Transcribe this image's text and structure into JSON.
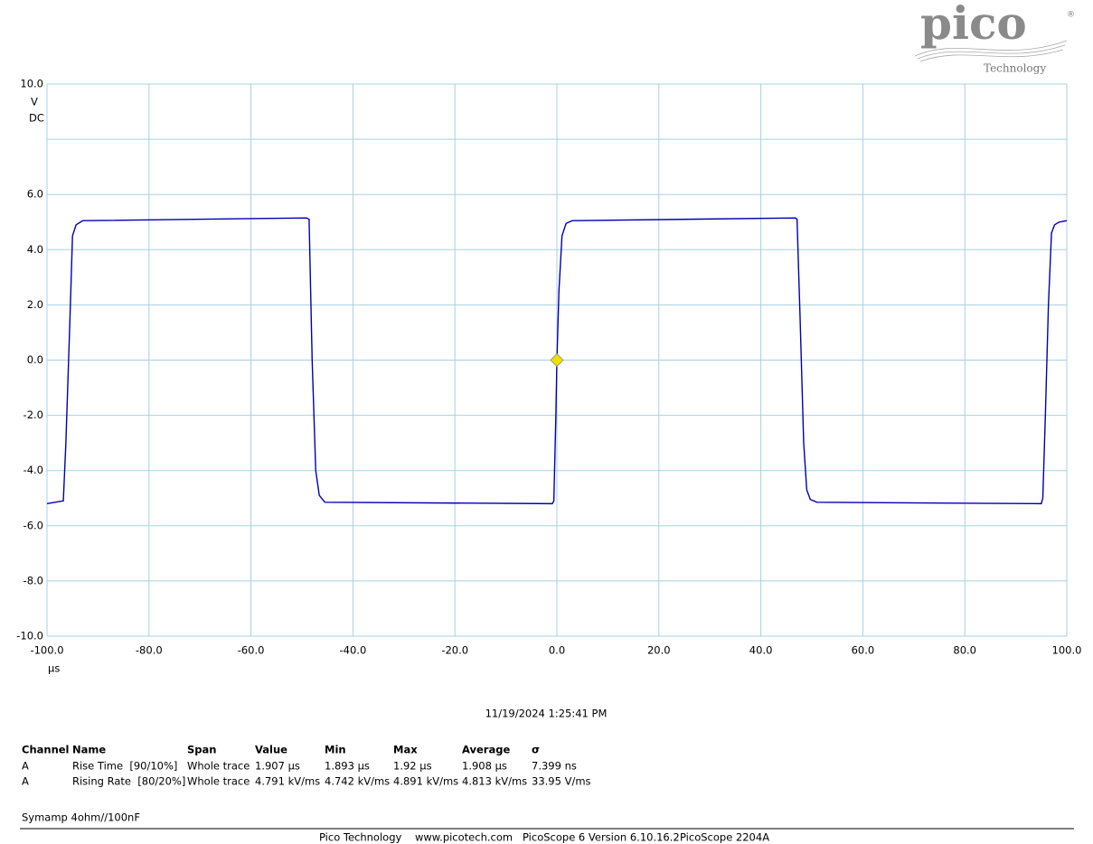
{
  "logo": {
    "name": "pico",
    "registered": "®",
    "sub": "Technology"
  },
  "chart_data": {
    "type": "line",
    "y_unit": "V",
    "y_coupling": "DC",
    "x_unit": "µs",
    "x": [
      -100,
      -96.8,
      -96.3,
      -95.5,
      -95,
      -94.3,
      -93,
      -49.1,
      -48.6,
      -48,
      -47.3,
      -46.6,
      -45.5,
      -0.9,
      -0.6,
      -0.2,
      0,
      0.4,
      1,
      1.8,
      3,
      46.8,
      47.1,
      47.7,
      48.4,
      49,
      49.7,
      51,
      95,
      95.3,
      95.8,
      96.4,
      97,
      97.6,
      98.5,
      100
    ],
    "series": [
      {
        "name": "A",
        "color": "#0000b0",
        "values": [
          -5.2,
          -5.1,
          -3,
          1.5,
          4.5,
          4.9,
          5.05,
          5.15,
          5.1,
          0,
          -4,
          -4.9,
          -5.15,
          -5.2,
          -5.1,
          -2,
          0,
          2.5,
          4.5,
          4.95,
          5.05,
          5.15,
          5.1,
          1.5,
          -3,
          -4.7,
          -5.05,
          -5.15,
          -5.2,
          -5.0,
          -2,
          2,
          4.6,
          4.9,
          5.0,
          5.05
        ]
      }
    ],
    "trigger": {
      "x": 0,
      "y": 0,
      "color": "#f0e000"
    },
    "xlim": [
      -100,
      100
    ],
    "ylim": [
      -10,
      10
    ],
    "grid": true,
    "xticks": [
      {
        "value": -100,
        "label": "-100.0"
      },
      {
        "value": -80,
        "label": "-80.0"
      },
      {
        "value": -60,
        "label": "-60.0"
      },
      {
        "value": -40,
        "label": "-40.0"
      },
      {
        "value": -20,
        "label": "-20.0"
      },
      {
        "value": 0,
        "label": "0.0"
      },
      {
        "value": 20,
        "label": "20.0"
      },
      {
        "value": 40,
        "label": "40.0"
      },
      {
        "value": 60,
        "label": "60.0"
      },
      {
        "value": 80,
        "label": "80.0"
      },
      {
        "value": 100,
        "label": "100.0"
      }
    ],
    "yticks": [
      {
        "value": 10,
        "label": "10.0"
      },
      {
        "value": 8,
        "label": null
      },
      {
        "value": 6,
        "label": "6.0"
      },
      {
        "value": 4,
        "label": "4.0"
      },
      {
        "value": 2,
        "label": "2.0"
      },
      {
        "value": 0,
        "label": "0.0"
      },
      {
        "value": -2,
        "label": "-2.0"
      },
      {
        "value": -4,
        "label": "-4.0"
      },
      {
        "value": -6,
        "label": "-6.0"
      },
      {
        "value": -8,
        "label": "-8.0"
      },
      {
        "value": -10,
        "label": "-10.0"
      }
    ]
  },
  "timestamp": "11/19/2024 1:25:41 PM",
  "table": {
    "header": [
      "Channel",
      "Name",
      "Span",
      "Value",
      "Min",
      "Max",
      "Average",
      "σ"
    ],
    "rows": [
      [
        "A",
        "Rise Time  [90/10%]",
        "Whole trace",
        "1.907 µs",
        "1.893 µs",
        "1.92 µs",
        "1.908 µs",
        "7.399 ns"
      ],
      [
        "A",
        "Rising Rate  [80/20%]",
        "Whole trace",
        "4.791 kV/ms",
        "4.742 kV/ms",
        "4.891 kV/ms",
        "4.813 kV/ms",
        "33.95 V/ms"
      ]
    ]
  },
  "note": "Symamp 4ohm//100nF",
  "footer": [
    "Pico Technology",
    "www.picotech.com",
    "PicoScope 6 Version 6.10.16.2",
    "PicoScope 2204A"
  ]
}
